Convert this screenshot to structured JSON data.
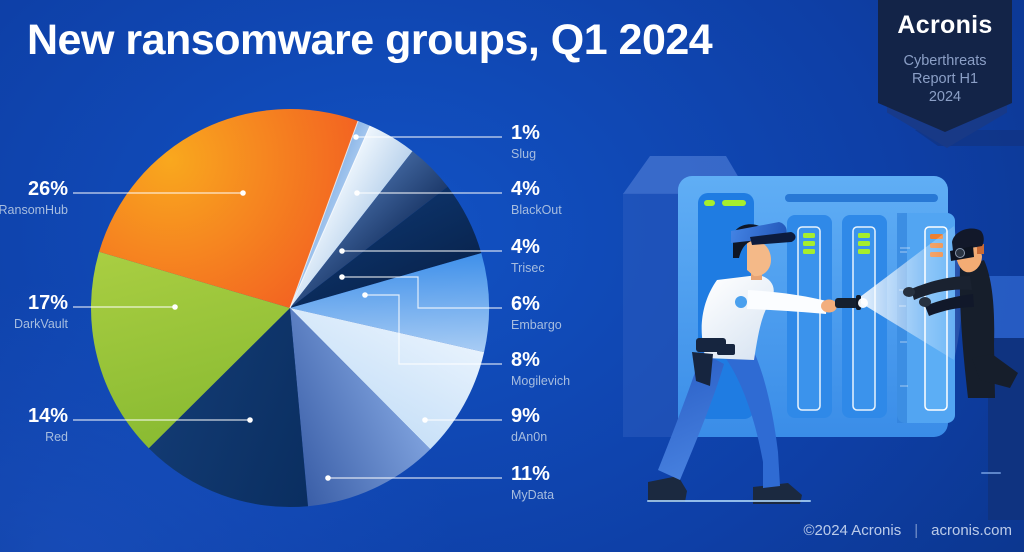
{
  "header": {
    "title": "New ransomware groups, Q1 2024"
  },
  "badge": {
    "brand": "Acronis",
    "line1": "Cyberthreats",
    "line2": "Report H1",
    "line3": "2024"
  },
  "footer": {
    "copyright": "©2024 Acronis",
    "separator": "|",
    "site": "acronis.com"
  },
  "colors": {
    "background_center": "#1252c4",
    "background_edge": "#092c74",
    "leader_line": "#ffffff",
    "label_name_text": "#a7bddf",
    "led_green": "#a5ee2d",
    "led_orange": "#ef8030",
    "rack_blue": "#4da0ef"
  },
  "chart_data": {
    "type": "pie",
    "title": "New ransomware groups, Q1 2024",
    "total": 100,
    "start_angle_deg": 20,
    "clockwise": true,
    "legend_position": "callout labels left and right",
    "slices": [
      {
        "id": "slug",
        "name": "Slug",
        "value": 1,
        "pct": "1%",
        "colors": [
          "#8fb8e8",
          "#a3c6ee"
        ]
      },
      {
        "id": "blackout",
        "name": "BlackOut",
        "value": 4,
        "pct": "4%",
        "colors": [
          "#eef6fd",
          "#bcd4ed"
        ]
      },
      {
        "id": "trisec",
        "name": "Trisec",
        "value": 4,
        "pct": "4%",
        "colors": [
          "#3d6199",
          "#1d3a6b"
        ]
      },
      {
        "id": "embargo",
        "name": "Embargo",
        "value": 6,
        "pct": "6%",
        "colors": [
          "#0c3166",
          "#092550"
        ]
      },
      {
        "id": "mogilevich",
        "name": "Mogilevich",
        "value": 8,
        "pct": "8%",
        "colors": [
          "#3f90ea",
          "#a8ccf4"
        ]
      },
      {
        "id": "dan0n",
        "name": "dAn0n",
        "value": 9,
        "pct": "9%",
        "colors": [
          "#e7f2fd",
          "#c9e1f8"
        ]
      },
      {
        "id": "mydata",
        "name": "MyData",
        "value": 11,
        "pct": "11%",
        "colors": [
          "#7da0dc",
          "#3a5ea7"
        ]
      },
      {
        "id": "red",
        "name": "Red",
        "value": 14,
        "pct": "14%",
        "colors": [
          "#0a2e60",
          "#123a72"
        ]
      },
      {
        "id": "darkvault",
        "name": "DarkVault",
        "value": 17,
        "pct": "17%",
        "colors": [
          "#8abb32",
          "#a9ce42"
        ]
      },
      {
        "id": "ransomhub",
        "name": "RansomHub",
        "value": 26,
        "pct": "26%",
        "colors": [
          "#f9a81e",
          "#ee3424"
        ]
      }
    ]
  }
}
